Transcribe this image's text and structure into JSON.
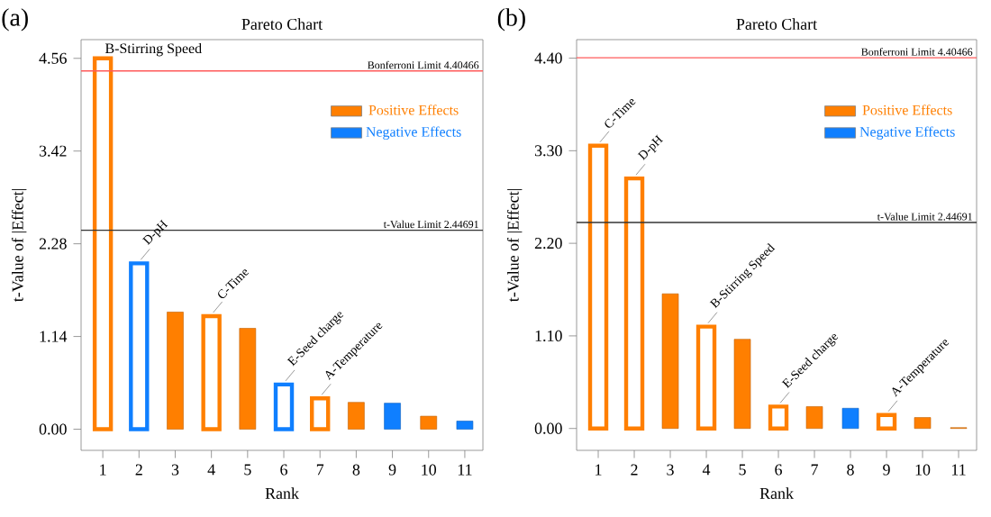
{
  "chart_data": [
    {
      "type": "bar",
      "title": "Pareto Chart",
      "xlabel": "Rank",
      "ylabel": "t-Value of |Effect|",
      "categories": [
        "1",
        "2",
        "3",
        "4",
        "5",
        "6",
        "7",
        "8",
        "9",
        "10",
        "11"
      ],
      "series": [
        {
          "name": "Positive Effects",
          "color": "#ff7f00",
          "values": [
            4.56,
            null,
            1.44,
            1.39,
            1.24,
            null,
            0.38,
            0.33,
            null,
            0.16,
            null
          ]
        },
        {
          "name": "Negative Effects",
          "color": "#0f7fff",
          "values": [
            null,
            2.04,
            null,
            null,
            null,
            0.55,
            null,
            null,
            0.32,
            null,
            0.1
          ]
        }
      ],
      "ylim": [
        -0.26,
        4.79
      ],
      "yticks": [
        {
          "value": 0,
          "label": "0.00"
        },
        {
          "value": 1.14,
          "label": "1.14"
        },
        {
          "value": 2.28,
          "label": "2.28"
        },
        {
          "value": 3.42,
          "label": "3.42"
        },
        {
          "value": 4.56,
          "label": "4.56"
        }
      ],
      "ref_lines": [
        {
          "axis": "y",
          "value": 4.40466,
          "label": "Bonferroni Limit 4.40466",
          "color": "#ff5a5a"
        },
        {
          "axis": "y",
          "value": 2.44691,
          "label": "t-Value Limit 2.44691",
          "color": "#333333"
        }
      ],
      "legend": "top right",
      "annotations": [
        "(a)",
        {
          "text": "B-Stirring Speed",
          "x": "1",
          "y": 4.56
        },
        {
          "text": "D-pH",
          "x": "2",
          "y": 2.04
        },
        {
          "text": "C-Time",
          "x": "4",
          "y": 1.39
        },
        {
          "text": "E-Seed charge",
          "x": "6",
          "y": 0.55
        },
        {
          "text": "A-Temperature",
          "x": "7",
          "y": 0.38
        }
      ]
    },
    {
      "type": "bar",
      "title": "Pareto Chart",
      "xlabel": "Rank",
      "ylabel": "t-Value of |Effect|",
      "categories": [
        "1",
        "2",
        "3",
        "4",
        "5",
        "6",
        "7",
        "8",
        "9",
        "10",
        "11"
      ],
      "series": [
        {
          "name": "Positive Effects",
          "color": "#ff7f00",
          "values": [
            3.36,
            2.97,
            1.6,
            1.21,
            1.06,
            0.26,
            0.26,
            null,
            0.16,
            0.13,
            0.01
          ]
        },
        {
          "name": "Negative Effects",
          "color": "#0f7fff",
          "values": [
            null,
            null,
            null,
            null,
            null,
            null,
            null,
            0.24,
            null,
            null,
            null
          ]
        }
      ],
      "ylim": [
        -0.26,
        4.62
      ],
      "yticks": [
        {
          "value": 0,
          "label": "0.00"
        },
        {
          "value": 1.1,
          "label": "1.10"
        },
        {
          "value": 2.2,
          "label": "2.20"
        },
        {
          "value": 3.3,
          "label": "3.30"
        },
        {
          "value": 4.4,
          "label": "4.40"
        }
      ],
      "ref_lines": [
        {
          "axis": "y",
          "value": 4.40466,
          "label": "Bonferroni Limit 4.40466",
          "color": "#ff5a5a"
        },
        {
          "axis": "y",
          "value": 2.44691,
          "label": "t-Value Limit 2.44691",
          "color": "#333333"
        }
      ],
      "legend": "top right",
      "annotations": [
        "(b)",
        {
          "text": "C-Time",
          "x": "1",
          "y": 3.36
        },
        {
          "text": "D-pH",
          "x": "2",
          "y": 2.97
        },
        {
          "text": "B-Stirring Speed",
          "x": "4",
          "y": 1.21
        },
        {
          "text": "E-Seed charge",
          "x": "6",
          "y": 0.26
        },
        {
          "text": "A-Temperature",
          "x": "9",
          "y": 0.16
        }
      ]
    }
  ]
}
